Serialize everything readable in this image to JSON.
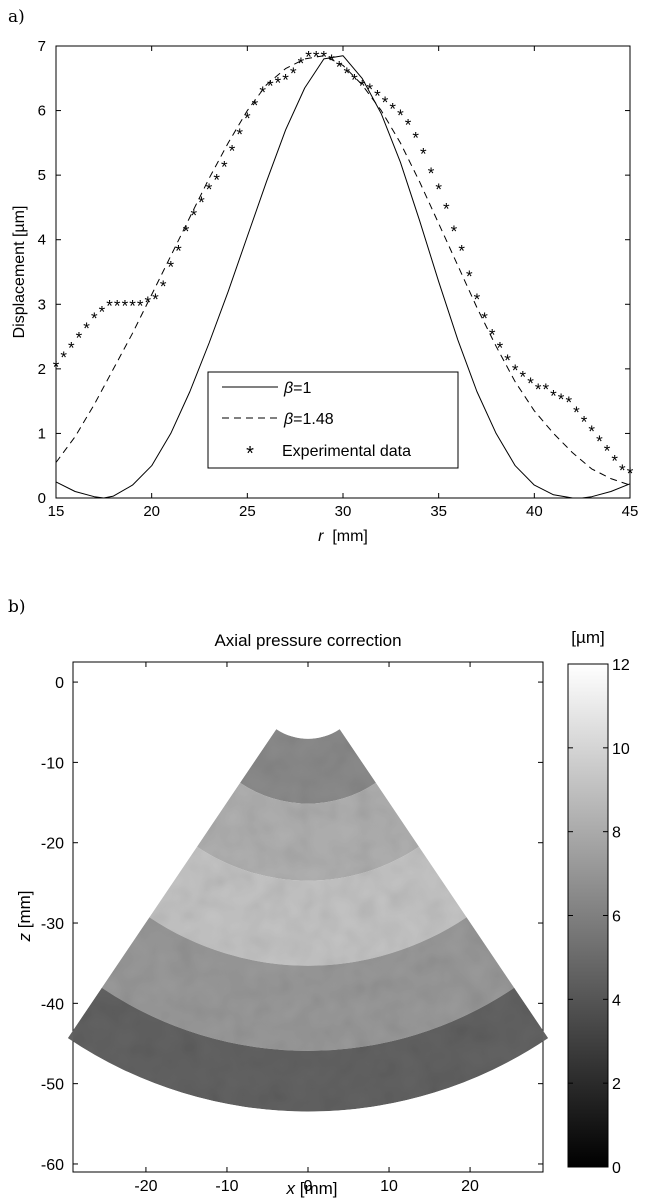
{
  "panels": {
    "a_label": "a)",
    "b_label": "b)"
  },
  "chart_data": [
    {
      "type": "line",
      "title": "",
      "xlabel_italic": "r",
      "xlabel_rest": "  [mm]",
      "ylabel": "Displacement [µm]",
      "xlim": [
        15,
        45
      ],
      "ylim": [
        0,
        7
      ],
      "xticks": [
        15,
        20,
        25,
        30,
        35,
        40,
        45
      ],
      "yticks": [
        0,
        1,
        2,
        3,
        4,
        5,
        6,
        7
      ],
      "legend_placement": "lower-center",
      "legend": [
        {
          "symbol": "β",
          "rest": "=1",
          "style": "solid"
        },
        {
          "symbol": "β",
          "rest": "=1.48",
          "style": "dashed"
        },
        {
          "symbol": "",
          "rest": "Experimental data",
          "style": "markers"
        }
      ],
      "series": [
        {
          "style": "solid",
          "x": [
            15,
            16,
            17,
            17.5,
            18,
            19,
            20,
            21,
            22,
            23,
            24,
            25,
            26,
            27,
            28,
            29,
            30,
            31,
            32,
            33,
            34,
            35,
            36,
            37,
            38,
            39,
            40,
            41,
            42,
            42.5,
            43,
            44,
            45
          ],
          "y": [
            0.25,
            0.1,
            0.02,
            0,
            0.03,
            0.2,
            0.5,
            1.0,
            1.65,
            2.4,
            3.2,
            4.05,
            4.9,
            5.7,
            6.35,
            6.8,
            6.85,
            6.5,
            5.95,
            5.2,
            4.3,
            3.35,
            2.45,
            1.65,
            1.0,
            0.5,
            0.2,
            0.05,
            0.0,
            0,
            0.02,
            0.1,
            0.22
          ]
        },
        {
          "style": "dashed",
          "x": [
            15,
            16,
            17,
            18,
            19,
            20,
            21,
            22,
            23,
            24,
            25,
            26,
            27,
            28,
            29,
            30,
            31,
            32,
            33,
            34,
            35,
            36,
            37,
            38,
            39,
            40,
            41,
            42,
            43,
            44,
            45
          ],
          "y": [
            0.55,
            0.95,
            1.45,
            2.0,
            2.55,
            3.15,
            3.75,
            4.35,
            4.95,
            5.5,
            6.0,
            6.4,
            6.65,
            6.8,
            6.85,
            6.7,
            6.4,
            6.0,
            5.5,
            4.9,
            4.25,
            3.6,
            2.95,
            2.35,
            1.8,
            1.35,
            1.0,
            0.7,
            0.45,
            0.3,
            0.2
          ]
        },
        {
          "style": "markers",
          "x": [
            15.0,
            15.4,
            15.8,
            16.2,
            16.6,
            17.0,
            17.4,
            17.8,
            18.2,
            18.6,
            19.0,
            19.4,
            19.8,
            20.2,
            20.6,
            21.0,
            21.4,
            21.8,
            22.2,
            22.6,
            23.0,
            23.4,
            23.8,
            24.2,
            24.6,
            25.0,
            25.4,
            25.8,
            26.2,
            26.6,
            27.0,
            27.4,
            27.8,
            28.2,
            28.6,
            29.0,
            29.4,
            29.8,
            30.2,
            30.6,
            31.0,
            31.4,
            31.8,
            32.2,
            32.6,
            33.0,
            33.4,
            33.8,
            34.2,
            34.6,
            35.0,
            35.4,
            35.8,
            36.2,
            36.6,
            37.0,
            37.4,
            37.8,
            38.2,
            38.6,
            39.0,
            39.4,
            39.8,
            40.2,
            40.6,
            41.0,
            41.4,
            41.8,
            42.2,
            42.6,
            43.0,
            43.4,
            43.8,
            44.2,
            44.6,
            45.0
          ],
          "y": [
            2.05,
            2.2,
            2.35,
            2.5,
            2.65,
            2.8,
            2.9,
            3.0,
            3.0,
            3.0,
            3.0,
            3.0,
            3.05,
            3.1,
            3.3,
            3.6,
            3.85,
            4.15,
            4.4,
            4.6,
            4.8,
            4.95,
            5.15,
            5.4,
            5.65,
            5.9,
            6.1,
            6.3,
            6.4,
            6.45,
            6.5,
            6.6,
            6.75,
            6.85,
            6.85,
            6.85,
            6.8,
            6.7,
            6.6,
            6.5,
            6.4,
            6.35,
            6.25,
            6.15,
            6.05,
            5.95,
            5.8,
            5.6,
            5.35,
            5.05,
            4.8,
            4.5,
            4.15,
            3.85,
            3.45,
            3.1,
            2.8,
            2.55,
            2.35,
            2.15,
            2.0,
            1.9,
            1.8,
            1.7,
            1.7,
            1.6,
            1.55,
            1.5,
            1.35,
            1.2,
            1.05,
            0.9,
            0.75,
            0.6,
            0.45,
            0.4
          ]
        }
      ]
    },
    {
      "type": "heatmap",
      "title": "Axial pressure correction",
      "xlabel_italic": "x",
      "xlabel_rest": " [mm]",
      "ylabel_italic": "z",
      "ylabel_rest": " [mm]",
      "xticks": [
        -20,
        -10,
        0,
        10,
        20
      ],
      "yticks": [
        0,
        -10,
        -20,
        -30,
        -40,
        -50,
        -60
      ],
      "xlim": [
        -29,
        29
      ],
      "ylim": [
        -61,
        2.5
      ],
      "sector": {
        "apex_z": 0,
        "inner_radius": 7,
        "outer_radius": 53,
        "half_angle_deg": 34
      },
      "bands": [
        {
          "r_from": 7,
          "r_to": 15,
          "value": 6.5
        },
        {
          "r_from": 15,
          "r_to": 24.5,
          "value": 8.3
        },
        {
          "r_from": 24.5,
          "r_to": 35,
          "value": 9.2
        },
        {
          "r_from": 35,
          "r_to": 45.5,
          "value": 7.2
        },
        {
          "r_from": 45.5,
          "r_to": 53,
          "value": 4.6
        }
      ],
      "colorbar": {
        "unit": "[µm]",
        "range": [
          0,
          12
        ],
        "ticks": [
          0,
          2,
          4,
          6,
          8,
          10,
          12
        ],
        "colormap": "gray"
      }
    }
  ]
}
